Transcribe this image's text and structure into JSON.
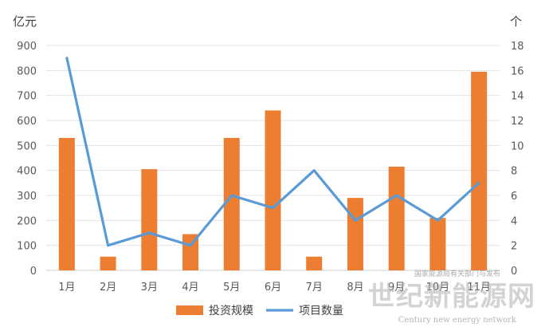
{
  "chart_data": {
    "type": "bar",
    "categories": [
      "1月",
      "2月",
      "3月",
      "4月",
      "5月",
      "6月",
      "7月",
      "8月",
      "9月",
      "10月",
      "11月"
    ],
    "series": [
      {
        "name": "投资规模",
        "type": "bar",
        "axis": "left",
        "color": "#ED7D31",
        "values": [
          530,
          55,
          405,
          145,
          530,
          640,
          55,
          290,
          415,
          210,
          795
        ]
      },
      {
        "name": "项目数量",
        "type": "line",
        "axis": "right",
        "color": "#5B9BD5",
        "values": [
          17,
          2,
          3,
          2,
          6,
          5,
          8,
          4,
          6,
          4,
          7
        ]
      }
    ],
    "y_left": {
      "unit": "亿元",
      "min": 0,
      "max": 900,
      "step": 100
    },
    "y_right": {
      "unit": "个",
      "min": 0,
      "max": 18,
      "step": 2
    },
    "grid": true,
    "legend": "bottom"
  },
  "watermark": {
    "main": "世纪新能源网",
    "sub": "Century new energy network",
    "small": "国家能源局有关部门与发布"
  }
}
